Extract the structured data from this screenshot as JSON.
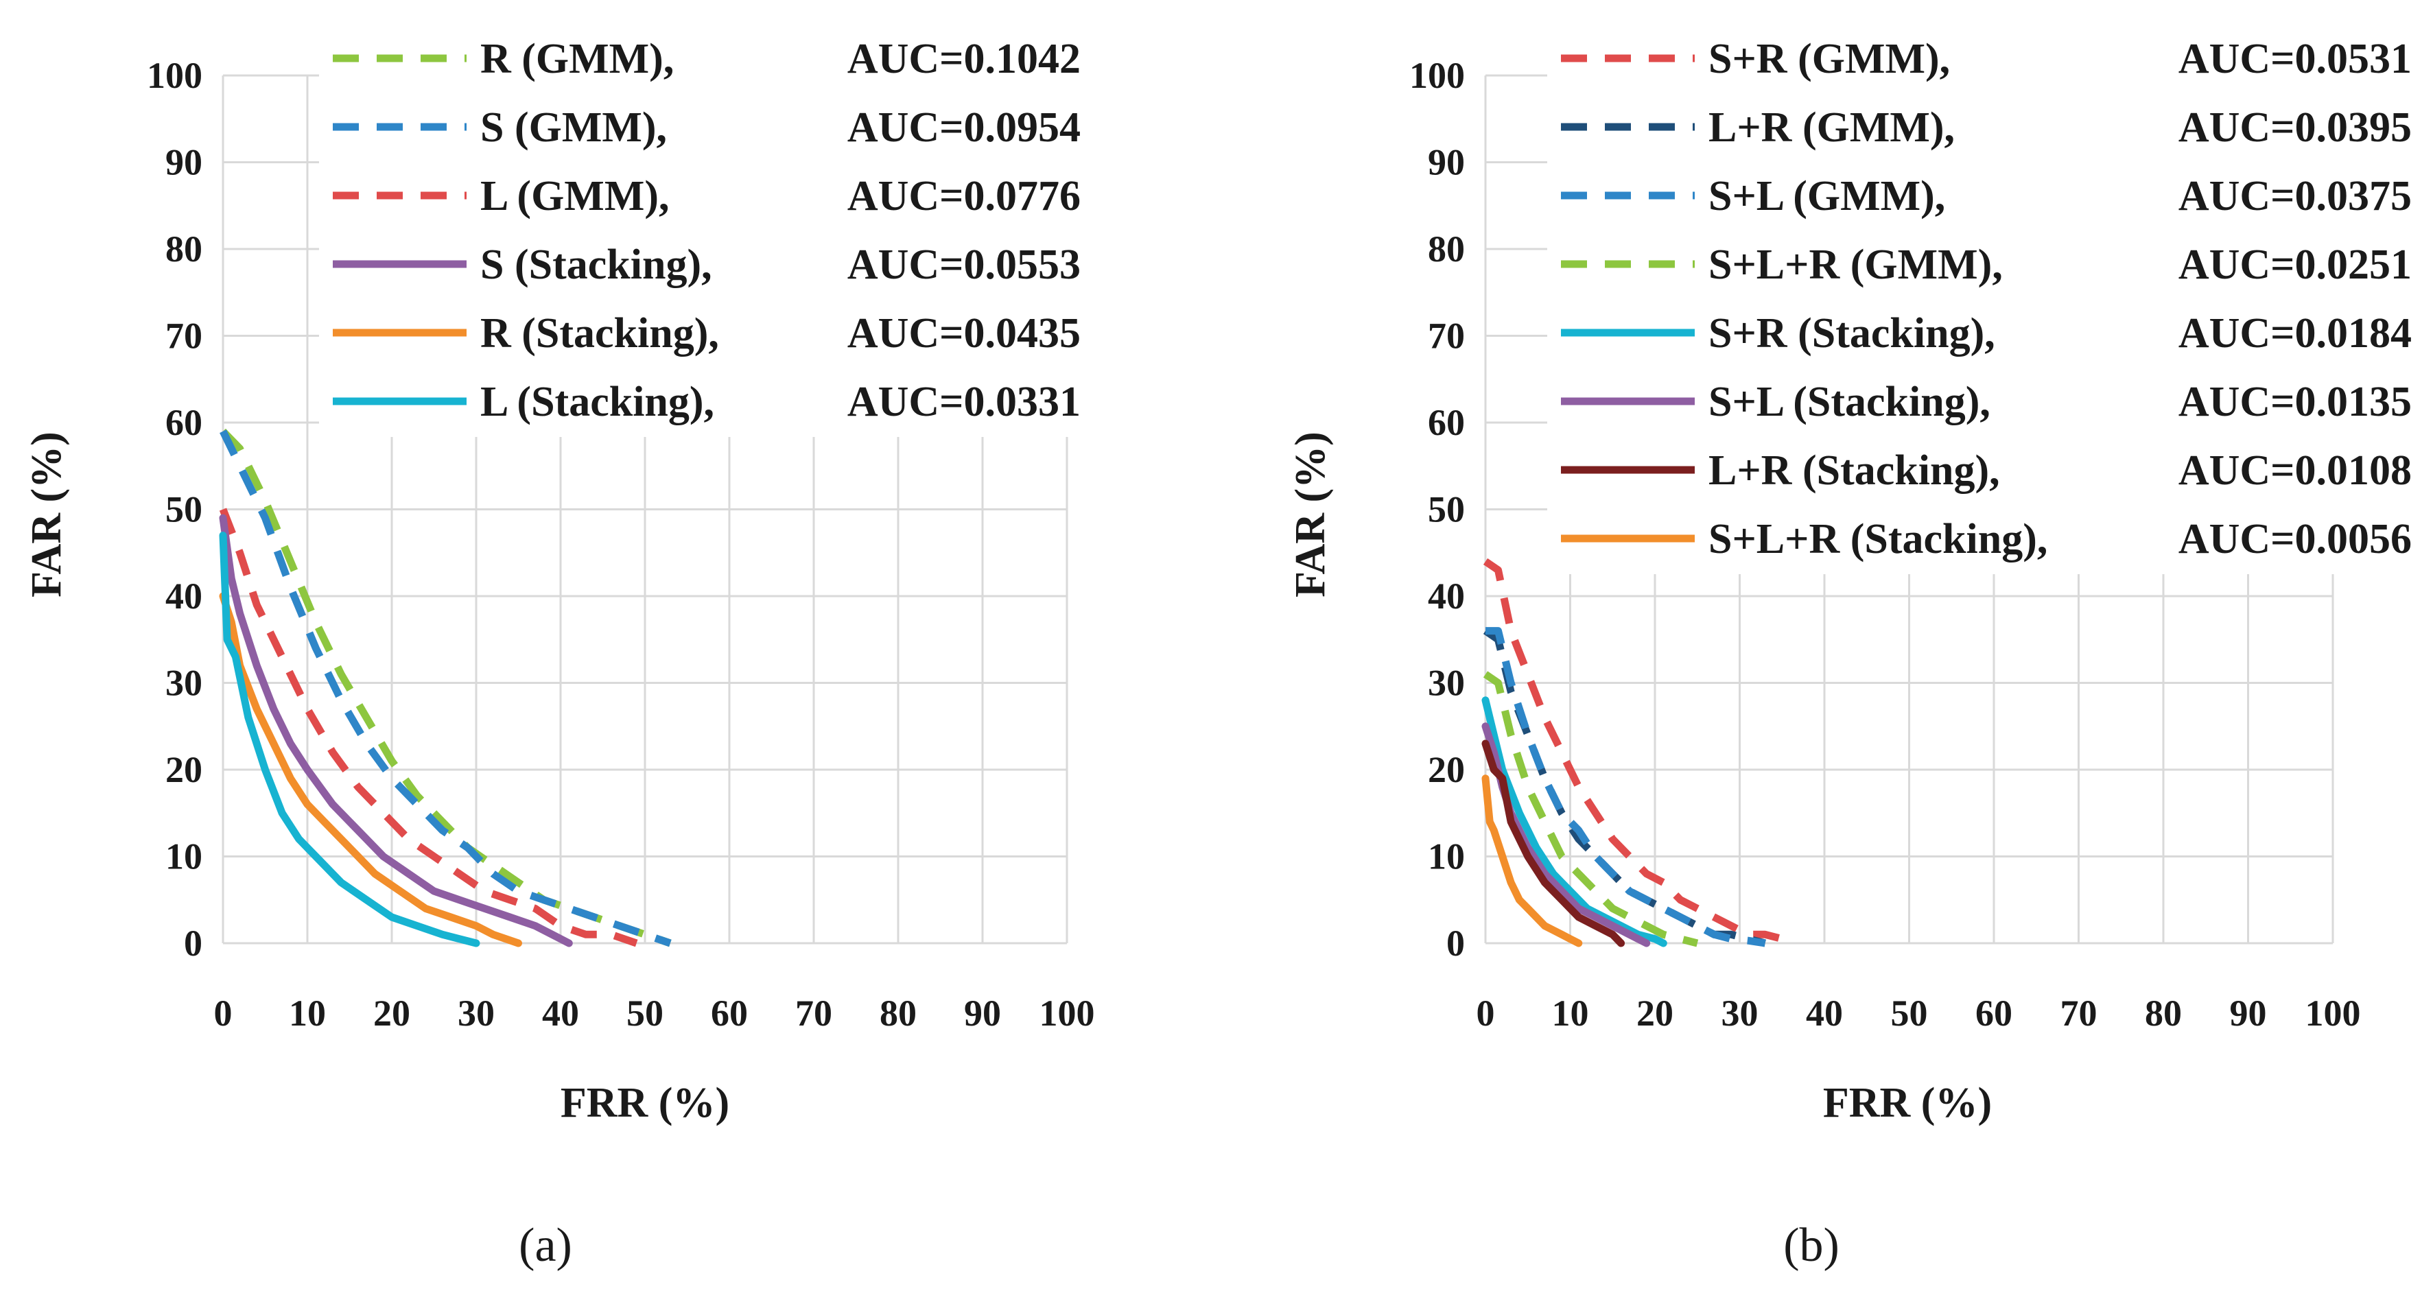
{
  "chart_data": [
    {
      "panel": "a",
      "panel_tag": "(a)",
      "type": "line",
      "xlabel": "FRR (%)",
      "ylabel": "FAR (%)",
      "xlim": [
        0,
        100
      ],
      "ylim": [
        0,
        100
      ],
      "x_ticks": [
        "0",
        "10",
        "20",
        "30",
        "40",
        "50",
        "60",
        "70",
        "80",
        "90",
        "100"
      ],
      "y_ticks": [
        "0",
        "10",
        "20",
        "30",
        "40",
        "50",
        "60",
        "70",
        "80",
        "90",
        "100"
      ],
      "grid": true,
      "legend_position": "top",
      "series": [
        {
          "name": "R (GMM),",
          "auc": "AUC=0.1042",
          "color": "#8dc63f",
          "dash": "dashed",
          "x": [
            0,
            2,
            5,
            8,
            11,
            14,
            17,
            20,
            23,
            26,
            29,
            32,
            35,
            38,
            41,
            44,
            47,
            50,
            53
          ],
          "y": [
            59,
            57,
            51,
            44,
            37,
            31,
            26,
            21,
            17,
            14,
            11,
            9,
            7,
            5,
            4,
            3,
            2,
            1,
            0
          ]
        },
        {
          "name": "S (GMM),",
          "auc": "AUC=0.0954",
          "color": "#2e86c8",
          "dash": "dashed",
          "x": [
            0,
            2,
            5,
            8,
            11,
            14,
            17,
            20,
            23,
            26,
            29,
            32,
            35,
            38,
            41,
            44,
            47,
            50,
            53
          ],
          "y": [
            59,
            55,
            49,
            41,
            34,
            28,
            23,
            19,
            16,
            13,
            11,
            8,
            6,
            5,
            4,
            3,
            2,
            1,
            0
          ]
        },
        {
          "name": "L (GMM),",
          "auc": "AUC=0.0776",
          "color": "#e04b4b",
          "dash": "dashed",
          "x": [
            0,
            2,
            4,
            7,
            10,
            13,
            16,
            19,
            22,
            25,
            28,
            31,
            34,
            37,
            40,
            43,
            46,
            49
          ],
          "y": [
            50,
            45,
            39,
            33,
            27,
            22,
            18,
            15,
            12,
            10,
            8,
            6,
            5,
            4,
            2,
            1,
            1,
            0
          ]
        },
        {
          "name": "S (Stacking),",
          "auc": "AUC=0.0553",
          "color": "#8e5ea2",
          "dash": "solid",
          "x": [
            0,
            1,
            2,
            4,
            6,
            8,
            10,
            13,
            16,
            19,
            22,
            25,
            28,
            31,
            34,
            37,
            39,
            41
          ],
          "y": [
            49,
            42,
            38,
            32,
            27,
            23,
            20,
            16,
            13,
            10,
            8,
            6,
            5,
            4,
            3,
            2,
            1,
            0
          ]
        },
        {
          "name": "R (Stacking),",
          "auc": "AUC=0.0435",
          "color": "#f28e2b",
          "dash": "solid",
          "x": [
            0,
            1,
            2,
            4,
            6,
            8,
            10,
            12,
            15,
            18,
            21,
            24,
            27,
            30,
            32,
            35
          ],
          "y": [
            40,
            37,
            32,
            27,
            23,
            19,
            16,
            14,
            11,
            8,
            6,
            4,
            3,
            2,
            1,
            0
          ]
        },
        {
          "name": "L (Stacking),",
          "auc": "AUC=0.0331",
          "color": "#17b3d1",
          "dash": "solid",
          "x": [
            0,
            0.5,
            1.5,
            3,
            5,
            7,
            9,
            11,
            14,
            17,
            20,
            23,
            26,
            28,
            30
          ],
          "y": [
            47,
            35,
            33,
            26,
            20,
            15,
            12,
            10,
            7,
            5,
            3,
            2,
            1,
            0.5,
            0
          ]
        }
      ]
    },
    {
      "panel": "b",
      "panel_tag": "(b)",
      "type": "line",
      "xlabel": "FRR (%)",
      "ylabel": "FAR (%)",
      "xlim": [
        0,
        100
      ],
      "ylim": [
        0,
        100
      ],
      "x_ticks": [
        "0",
        "10",
        "20",
        "30",
        "40",
        "50",
        "60",
        "70",
        "80",
        "90",
        "100"
      ],
      "y_ticks": [
        "0",
        "10",
        "20",
        "30",
        "40",
        "50",
        "60",
        "70",
        "80",
        "90",
        "100"
      ],
      "grid": true,
      "legend_position": "top",
      "series": [
        {
          "name": "S+R (GMM),",
          "auc": "AUC=0.0531",
          "color": "#e04b4b",
          "dash": "dashed",
          "x": [
            0,
            1.5,
            3,
            5,
            7,
            9,
            11,
            13,
            15,
            17,
            19,
            21,
            23,
            25,
            27,
            29,
            31,
            33,
            35,
            36
          ],
          "y": [
            44,
            43,
            36,
            31,
            26,
            22,
            18,
            15,
            12,
            10,
            8,
            7,
            5,
            4,
            3,
            2,
            1,
            1,
            0.5,
            0
          ]
        },
        {
          "name": "L+R (GMM),",
          "auc": "AUC=0.0395",
          "color": "#1f4e79",
          "dash": "dashed",
          "x": [
            0,
            1.5,
            3,
            5,
            7,
            9,
            11,
            13,
            15,
            17,
            19,
            21,
            23,
            25,
            27,
            29,
            31,
            33
          ],
          "y": [
            36,
            35,
            29,
            24,
            19,
            15,
            12,
            10,
            8,
            6,
            5,
            4,
            3,
            2,
            1,
            1,
            0.5,
            0
          ]
        },
        {
          "name": "S+L (GMM),",
          "auc": "AUC=0.0375",
          "color": "#2e86c8",
          "dash": "dashed",
          "x": [
            0,
            1.5,
            3,
            5,
            7,
            9,
            11,
            13,
            15,
            17,
            19,
            21,
            23,
            25,
            27,
            29,
            31,
            33
          ],
          "y": [
            36,
            36,
            30,
            24,
            19,
            15,
            13,
            10,
            8,
            6,
            5,
            4,
            3,
            2,
            1,
            0.5,
            0.3,
            0
          ]
        },
        {
          "name": "S+L+R (GMM),",
          "auc": "AUC=0.0251",
          "color": "#8dc63f",
          "dash": "dashed",
          "x": [
            0,
            1.5,
            3,
            5,
            7,
            9,
            11,
            13,
            15,
            17,
            19,
            21,
            23,
            25
          ],
          "y": [
            31,
            30,
            24,
            18,
            14,
            10,
            8,
            6,
            4,
            3,
            2,
            1,
            0.5,
            0
          ]
        },
        {
          "name": "S+R (Stacking),",
          "auc": "AUC=0.0184",
          "color": "#17b3d1",
          "dash": "solid",
          "x": [
            0,
            1,
            2,
            4,
            6,
            8,
            10,
            12,
            14,
            16,
            18,
            20,
            21
          ],
          "y": [
            28,
            24,
            20,
            15,
            11,
            8,
            6,
            4,
            3,
            2,
            1,
            0.5,
            0
          ]
        },
        {
          "name": "S+L (Stacking),",
          "auc": "AUC=0.0135",
          "color": "#8e5ea2",
          "dash": "solid",
          "x": [
            0,
            1,
            2,
            3,
            5,
            7,
            9,
            11,
            13,
            15,
            17,
            19
          ],
          "y": [
            25,
            22,
            18,
            15,
            11,
            8,
            6,
            4,
            3,
            2,
            1,
            0
          ]
        },
        {
          "name": "L+R (Stacking),",
          "auc": "AUC=0.0108",
          "color": "#7b1f1f",
          "dash": "solid",
          "x": [
            0,
            1,
            2,
            3,
            5,
            7,
            9,
            11,
            13,
            15,
            16
          ],
          "y": [
            23,
            20,
            19,
            14,
            10,
            7,
            5,
            3,
            2,
            1,
            0
          ]
        },
        {
          "name": "S+L+R (Stacking),",
          "auc": "AUC=0.0056",
          "color": "#f28e2b",
          "dash": "solid",
          "x": [
            0,
            0.5,
            1,
            2,
            3,
            4,
            5,
            6,
            7,
            8,
            9,
            10,
            11
          ],
          "y": [
            19,
            14,
            13,
            10,
            7,
            5,
            4,
            3,
            2,
            1.5,
            1,
            0.5,
            0
          ]
        }
      ]
    }
  ]
}
